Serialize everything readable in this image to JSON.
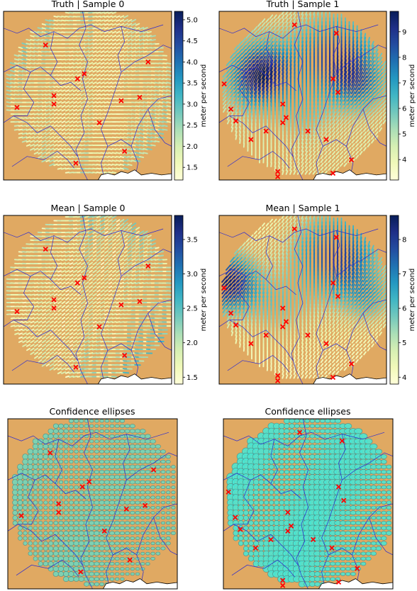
{
  "chart_data": [
    {
      "type": "quiver-map",
      "title": "Truth | Sample 0",
      "colorbar": {
        "label": "meter per second",
        "ticks": [
          "1.5",
          "2.0",
          "2.5",
          "3.0",
          "3.5",
          "4.0",
          "4.5",
          "5.0"
        ],
        "tick_values": [
          1.5,
          2.0,
          2.5,
          3.0,
          3.5,
          4.0,
          4.5,
          5.0
        ],
        "range": [
          1.2,
          5.2
        ]
      },
      "field": {
        "mode": "bands",
        "wind_dir_deg": 85,
        "high_values": [
          3.3,
          3.1,
          2.4,
          2.8,
          1.9,
          2.2,
          2.7,
          1.9,
          1.8,
          2.6,
          2.9,
          3.1,
          3.2
        ],
        "low_values": [
          1.6,
          1.5,
          1.6,
          1.6,
          1.5,
          1.5,
          1.6,
          1.5,
          1.5,
          1.6,
          1.6,
          1.6,
          1.6
        ]
      },
      "stations": [
        [
          0.25,
          0.2
        ],
        [
          0.44,
          0.4
        ],
        [
          0.48,
          0.37
        ],
        [
          0.3,
          0.5
        ],
        [
          0.3,
          0.55
        ],
        [
          0.08,
          0.57
        ],
        [
          0.7,
          0.53
        ],
        [
          0.81,
          0.51
        ],
        [
          0.86,
          0.3
        ],
        [
          0.57,
          0.66
        ],
        [
          0.72,
          0.83
        ],
        [
          0.43,
          0.9
        ]
      ]
    },
    {
      "type": "quiver-map",
      "title": "Truth | Sample 1",
      "colorbar": {
        "label": "meter per second",
        "ticks": [
          "4",
          "5",
          "6",
          "7",
          "8",
          "9"
        ],
        "tick_values": [
          4,
          5,
          6,
          7,
          8,
          9
        ],
        "range": [
          3.2,
          9.8
        ]
      },
      "field": {
        "mode": "blobs",
        "wind_dir_deg": 20,
        "base": 4.3,
        "blobs": [
          [
            0.25,
            0.38,
            0.2,
            5.3
          ],
          [
            0.7,
            0.28,
            0.24,
            4.6
          ],
          [
            0.85,
            0.45,
            0.15,
            2.0
          ],
          [
            0.5,
            0.62,
            0.15,
            1.2
          ]
        ]
      },
      "stations": [
        [
          0.45,
          0.08
        ],
        [
          0.7,
          0.13
        ],
        [
          0.03,
          0.43
        ],
        [
          0.07,
          0.58
        ],
        [
          0.68,
          0.4
        ],
        [
          0.71,
          0.48
        ],
        [
          0.1,
          0.65
        ],
        [
          0.28,
          0.71
        ],
        [
          0.38,
          0.55
        ],
        [
          0.4,
          0.63
        ],
        [
          0.38,
          0.66
        ],
        [
          0.53,
          0.71
        ],
        [
          0.64,
          0.76
        ],
        [
          0.19,
          0.76
        ],
        [
          0.79,
          0.88
        ],
        [
          0.68,
          0.96
        ],
        [
          0.35,
          0.95
        ],
        [
          0.35,
          0.98
        ]
      ]
    },
    {
      "type": "quiver-map",
      "title": "Mean | Sample 0",
      "colorbar": {
        "label": "meter per second",
        "ticks": [
          "1.5",
          "2.0",
          "2.5",
          "3.0",
          "3.5"
        ],
        "tick_values": [
          1.5,
          2.0,
          2.5,
          3.0,
          3.5
        ],
        "range": [
          1.4,
          3.85
        ]
      },
      "field": {
        "mode": "bands",
        "wind_dir_deg": 75,
        "high_values": [
          2.4,
          2.2,
          2.1,
          2.2,
          2.0,
          2.1,
          2.5,
          2.4,
          2.3,
          2.7,
          2.8,
          2.9,
          2.9
        ],
        "low_values": [
          1.6,
          1.5,
          1.6,
          1.6,
          1.5,
          1.5,
          1.6,
          1.5,
          1.5,
          1.6,
          1.6,
          1.6,
          1.6
        ]
      },
      "stations": [
        [
          0.25,
          0.2
        ],
        [
          0.44,
          0.4
        ],
        [
          0.48,
          0.37
        ],
        [
          0.3,
          0.5
        ],
        [
          0.3,
          0.55
        ],
        [
          0.08,
          0.57
        ],
        [
          0.7,
          0.53
        ],
        [
          0.81,
          0.51
        ],
        [
          0.86,
          0.3
        ],
        [
          0.57,
          0.66
        ],
        [
          0.72,
          0.83
        ],
        [
          0.43,
          0.9
        ]
      ]
    },
    {
      "type": "quiver-map",
      "title": "Mean | Sample 1",
      "colorbar": {
        "label": "meter per second",
        "ticks": [
          "4",
          "5",
          "6",
          "7",
          "8"
        ],
        "tick_values": [
          4,
          5,
          6,
          7,
          8
        ],
        "range": [
          3.8,
          8.7
        ]
      },
      "field": {
        "mode": "blobs",
        "wind_dir_deg": 20,
        "base": 4.2,
        "blobs": [
          [
            0.05,
            0.4,
            0.18,
            4.2
          ],
          [
            0.7,
            0.25,
            0.26,
            3.8
          ],
          [
            0.9,
            0.5,
            0.14,
            1.5
          ],
          [
            0.35,
            0.55,
            0.18,
            1.4
          ]
        ]
      },
      "stations": [
        [
          0.45,
          0.08
        ],
        [
          0.7,
          0.13
        ],
        [
          0.03,
          0.43
        ],
        [
          0.07,
          0.58
        ],
        [
          0.68,
          0.4
        ],
        [
          0.71,
          0.48
        ],
        [
          0.1,
          0.65
        ],
        [
          0.28,
          0.71
        ],
        [
          0.38,
          0.55
        ],
        [
          0.4,
          0.63
        ],
        [
          0.38,
          0.66
        ],
        [
          0.53,
          0.71
        ],
        [
          0.64,
          0.76
        ],
        [
          0.19,
          0.76
        ],
        [
          0.79,
          0.88
        ],
        [
          0.68,
          0.96
        ],
        [
          0.35,
          0.95
        ],
        [
          0.35,
          0.98
        ]
      ]
    },
    {
      "type": "ellipse-map",
      "title": "Confidence ellipses",
      "ellipse_scale": 0.5,
      "ellipse_color": "#58e0cf",
      "stations": [
        [
          0.25,
          0.2
        ],
        [
          0.44,
          0.4
        ],
        [
          0.48,
          0.37
        ],
        [
          0.3,
          0.5
        ],
        [
          0.3,
          0.55
        ],
        [
          0.08,
          0.57
        ],
        [
          0.7,
          0.53
        ],
        [
          0.81,
          0.51
        ],
        [
          0.86,
          0.3
        ],
        [
          0.57,
          0.66
        ],
        [
          0.72,
          0.83
        ],
        [
          0.43,
          0.9
        ]
      ]
    },
    {
      "type": "ellipse-map",
      "title": "Confidence ellipses",
      "ellipse_scale": 0.95,
      "ellipse_color": "#48e6d4",
      "stations": [
        [
          0.45,
          0.08
        ],
        [
          0.7,
          0.13
        ],
        [
          0.03,
          0.43
        ],
        [
          0.07,
          0.58
        ],
        [
          0.68,
          0.4
        ],
        [
          0.71,
          0.48
        ],
        [
          0.1,
          0.65
        ],
        [
          0.28,
          0.71
        ],
        [
          0.38,
          0.55
        ],
        [
          0.4,
          0.63
        ],
        [
          0.38,
          0.66
        ],
        [
          0.53,
          0.71
        ],
        [
          0.64,
          0.76
        ],
        [
          0.19,
          0.76
        ],
        [
          0.79,
          0.88
        ],
        [
          0.68,
          0.96
        ],
        [
          0.35,
          0.95
        ],
        [
          0.35,
          0.98
        ]
      ]
    }
  ],
  "colors": {
    "land": "#e0a962",
    "rivers": "#2a2ad0",
    "station_marker": "#ff0000",
    "coast": "#ffffff",
    "colormap": "YlGnBu"
  }
}
